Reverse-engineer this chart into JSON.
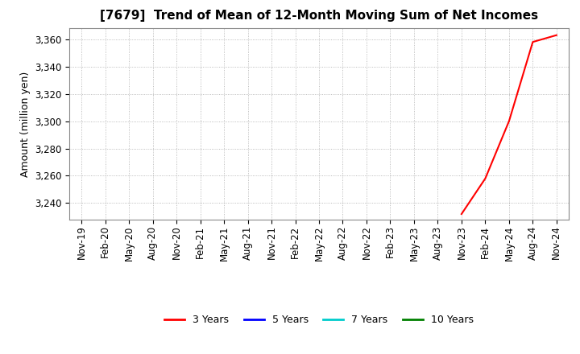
{
  "title": "[7679]  Trend of Mean of 12-Month Moving Sum of Net Incomes",
  "ylabel": "Amount (million yen)",
  "ylim": [
    3228,
    3368
  ],
  "yticks": [
    3240,
    3260,
    3280,
    3300,
    3320,
    3340,
    3360
  ],
  "background_color": "#ffffff",
  "plot_bg_color": "#ffffff",
  "grid_color": "#aaaaaa",
  "title_fontsize": 11,
  "axis_label_fontsize": 9,
  "tick_fontsize": 8.5,
  "legend_labels": [
    "3 Years",
    "5 Years",
    "7 Years",
    "10 Years"
  ],
  "legend_colors": [
    "#ff0000",
    "#0000ff",
    "#00cccc",
    "#008000"
  ],
  "x_labels": [
    "Nov-19",
    "Feb-20",
    "May-20",
    "Aug-20",
    "Nov-20",
    "Feb-21",
    "May-21",
    "Aug-21",
    "Nov-21",
    "Feb-22",
    "May-22",
    "Aug-22",
    "Nov-22",
    "Feb-23",
    "May-23",
    "Aug-23",
    "Nov-23",
    "Feb-24",
    "May-24",
    "Aug-24",
    "Nov-24"
  ],
  "series_3yr": {
    "color": "#ff0000",
    "x_indices": [
      16,
      17,
      18,
      19,
      20
    ],
    "y_values": [
      3232.0,
      3258.0,
      3300.0,
      3358.0,
      3363.0
    ]
  },
  "series_5yr": {
    "color": "#0000ff",
    "x_indices": [],
    "y_values": []
  },
  "series_7yr": {
    "color": "#00cccc",
    "x_indices": [],
    "y_values": []
  },
  "series_10yr": {
    "color": "#008000",
    "x_indices": [],
    "y_values": []
  }
}
